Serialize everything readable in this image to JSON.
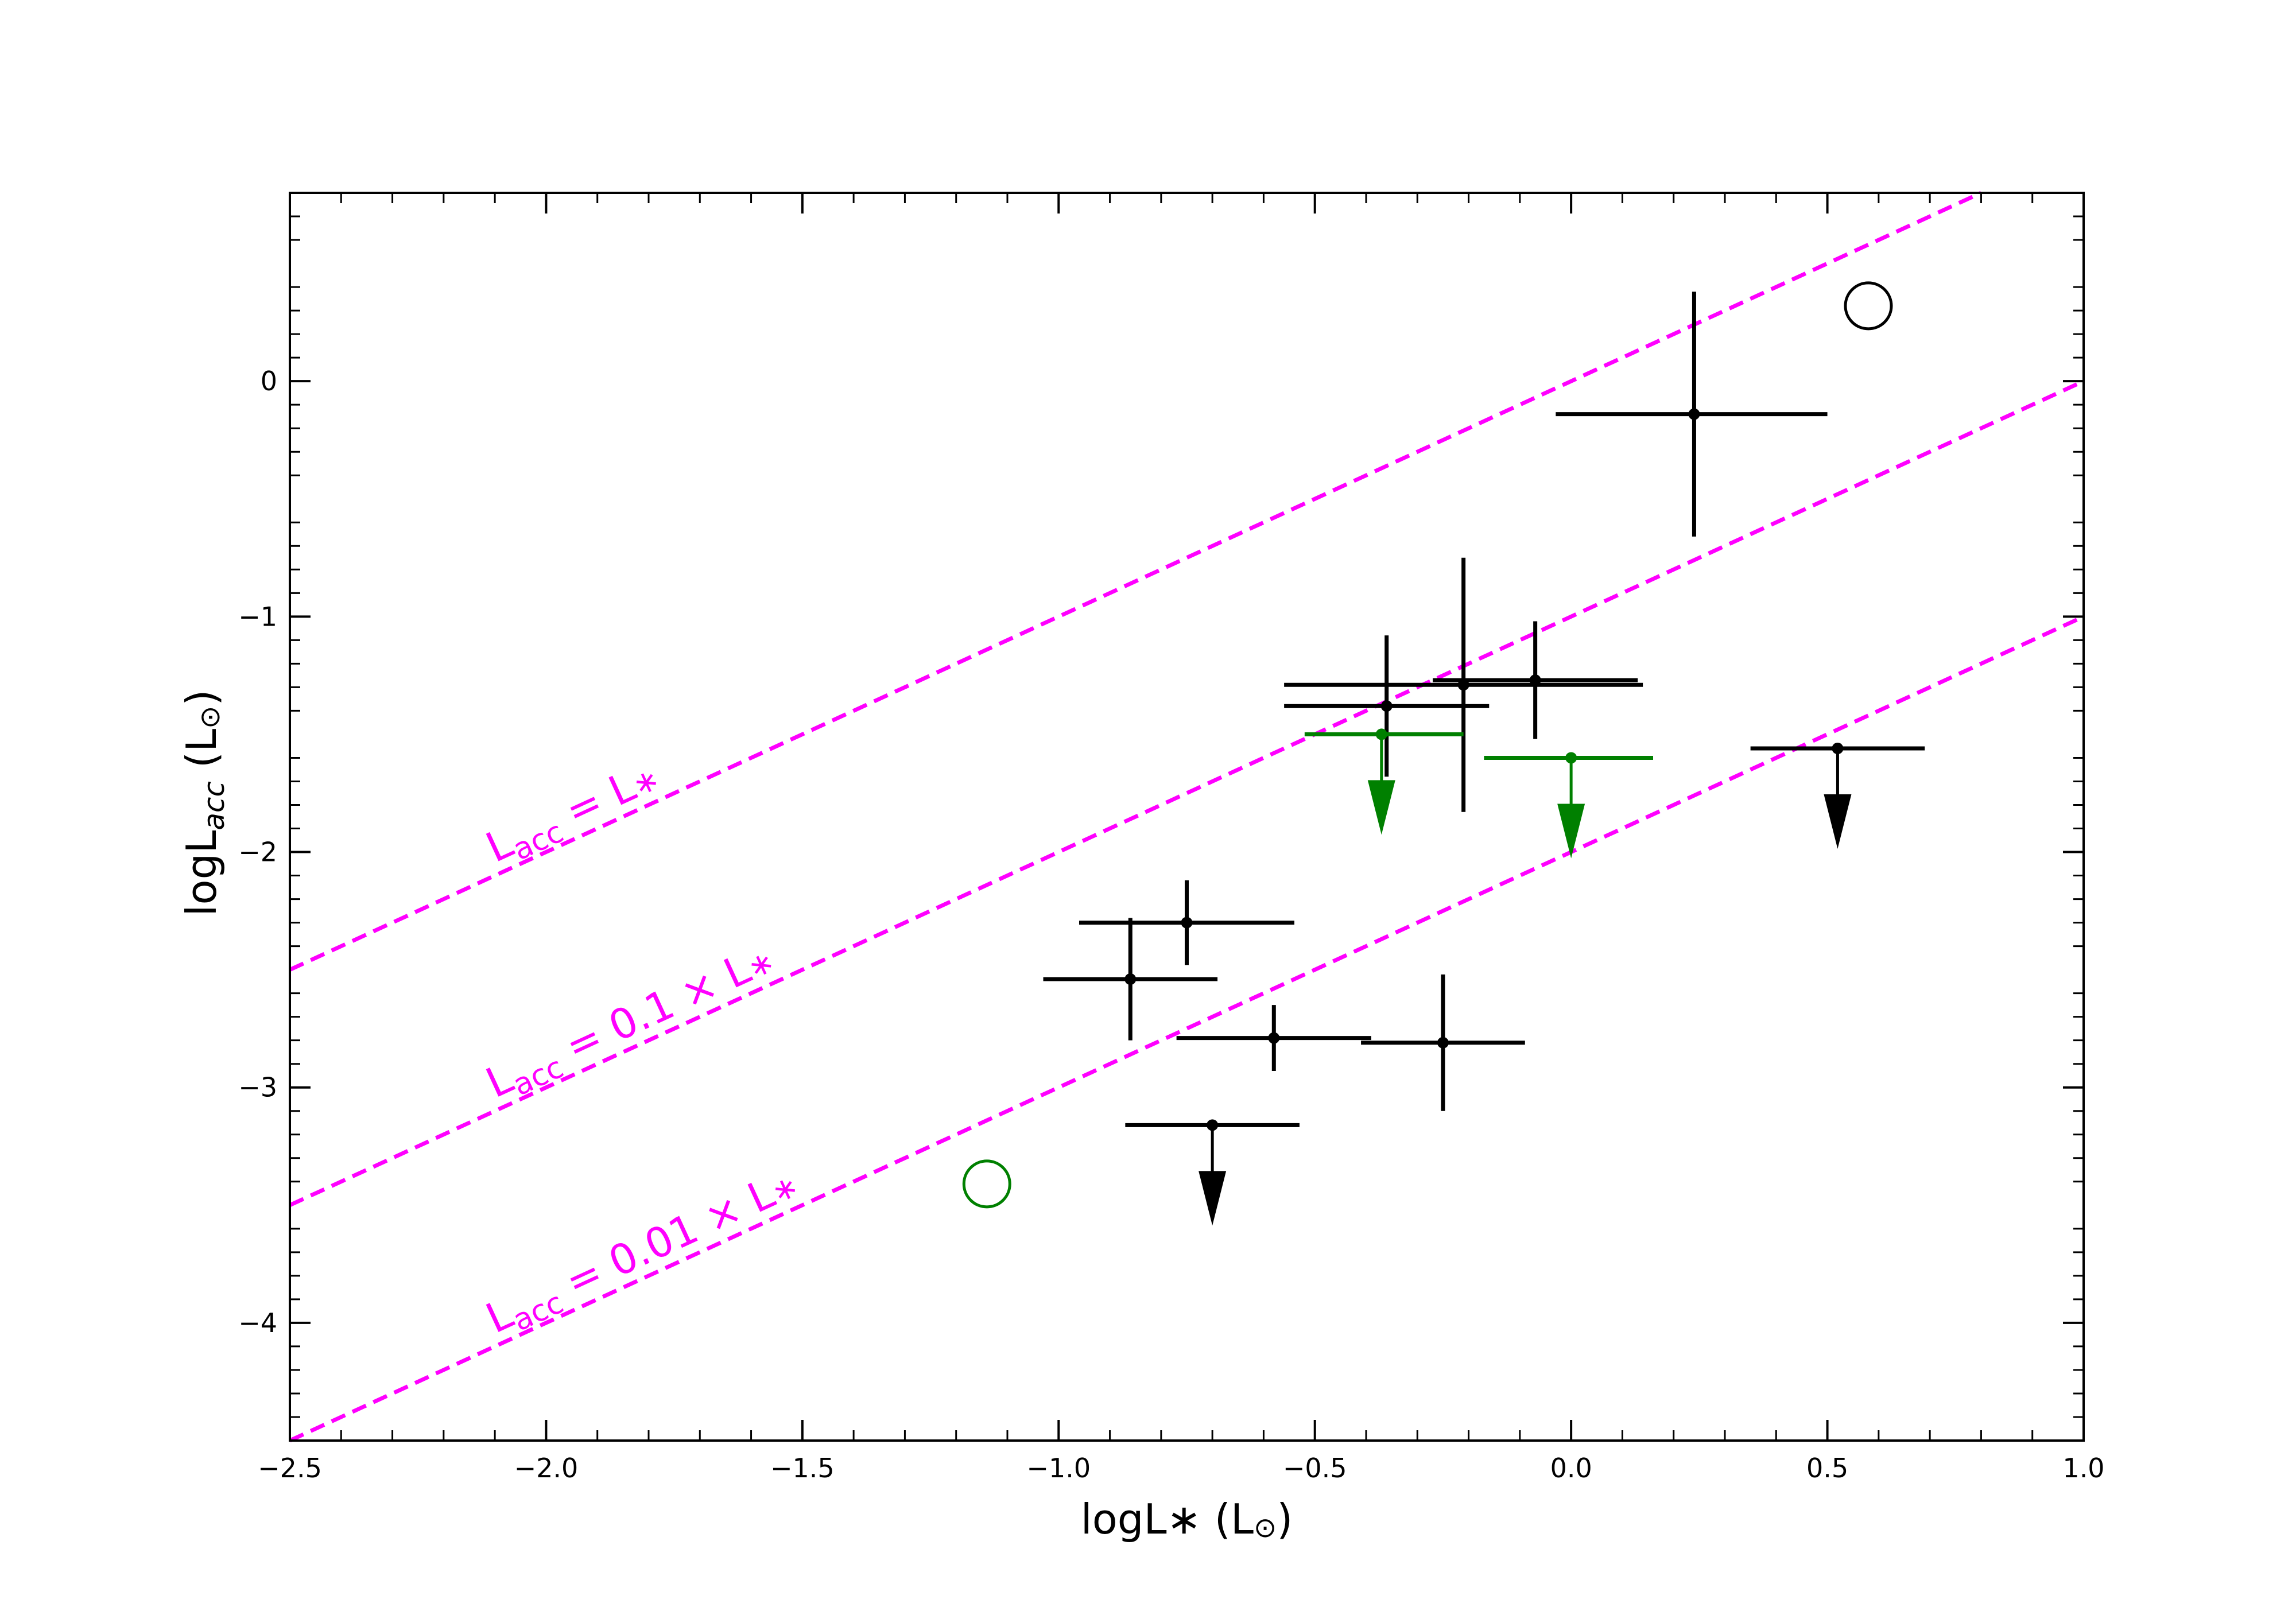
{
  "chart_data": {
    "type": "scatter",
    "xlabel": {
      "main": "logL",
      "sub": "∗",
      "unit": " (L",
      "sun": "⊙",
      "close": ")"
    },
    "ylabel": {
      "main": "logL",
      "sub": "acc",
      "unit": " (L",
      "sun": "⊙",
      "close": ")"
    },
    "xlim": [
      -2.5,
      1.0
    ],
    "ylim": [
      -4.5,
      0.8
    ],
    "xticks": [
      -2.5,
      -2.0,
      -1.5,
      -1.0,
      -0.5,
      0.0,
      0.5,
      1.0
    ],
    "xtick_labels": [
      "−2.5",
      "−2.0",
      "−1.5",
      "−1.0",
      "−0.5",
      "0.0",
      "0.5",
      "1.0"
    ],
    "yticks": [
      0,
      -1,
      -2,
      -3,
      -4
    ],
    "ytick_labels": [
      "0",
      "−1",
      "−2",
      "−3",
      "−4"
    ],
    "grid": false,
    "reference_lines": [
      {
        "label_lhs": "L",
        "label_sub": "acc",
        "label_rhs": " = L",
        "label_star": "∗",
        "offset": 0,
        "color": "#ff00ff"
      },
      {
        "label_lhs": "L",
        "label_sub": "acc",
        "label_rhs": " = 0.1 × L",
        "label_star": "∗",
        "offset": -1,
        "color": "#ff00ff"
      },
      {
        "label_lhs": "L",
        "label_sub": "acc",
        "label_rhs": " = 0.01 × L",
        "label_star": "∗",
        "offset": -2,
        "color": "#ff00ff"
      }
    ],
    "points": [
      {
        "x": 0.24,
        "y": -0.14,
        "xerr": [
          0.27,
          0.26
        ],
        "yerr": [
          0.52,
          0.52
        ],
        "color": "#000000"
      },
      {
        "x": -0.21,
        "y": -1.29,
        "xerr": [
          0.35,
          0.35
        ],
        "yerr": [
          0.54,
          0.54
        ],
        "color": "#000000"
      },
      {
        "x": -0.36,
        "y": -1.38,
        "xerr": [
          0.2,
          0.2
        ],
        "yerr": [
          0.3,
          0.3
        ],
        "color": "#000000"
      },
      {
        "x": -0.07,
        "y": -1.27,
        "xerr": [
          0.2,
          0.2
        ],
        "yerr": [
          0.25,
          0.25
        ],
        "color": "#000000"
      },
      {
        "x": -0.75,
        "y": -2.3,
        "xerr": [
          0.21,
          0.21
        ],
        "yerr": [
          0.18,
          0.18
        ],
        "color": "#000000"
      },
      {
        "x": -0.86,
        "y": -2.54,
        "xerr": [
          0.17,
          0.17
        ],
        "yerr": [
          0.26,
          0.26
        ],
        "color": "#000000"
      },
      {
        "x": -0.58,
        "y": -2.79,
        "xerr": [
          0.19,
          0.19
        ],
        "yerr": [
          0.14,
          0.14
        ],
        "color": "#000000"
      },
      {
        "x": -0.25,
        "y": -2.81,
        "xerr": [
          0.16,
          0.16
        ],
        "yerr": [
          0.29,
          0.29
        ],
        "color": "#000000"
      }
    ],
    "upper_limits": [
      {
        "x": 0.52,
        "y": -1.56,
        "xerr": [
          0.17,
          0.17
        ],
        "color": "#000000"
      },
      {
        "x": -0.7,
        "y": -3.16,
        "xerr": [
          0.17,
          0.17
        ],
        "color": "#000000"
      },
      {
        "x": -0.37,
        "y": -1.5,
        "xerr": [
          0.15,
          0.16
        ],
        "color": "#008000"
      },
      {
        "x": 0.0,
        "y": -1.6,
        "xerr": [
          0.17,
          0.16
        ],
        "color": "#008000"
      }
    ],
    "open_circles": [
      {
        "x": 0.58,
        "y": 0.32,
        "color": "#000000"
      },
      {
        "x": -1.14,
        "y": -3.41,
        "color": "#008000"
      }
    ]
  }
}
